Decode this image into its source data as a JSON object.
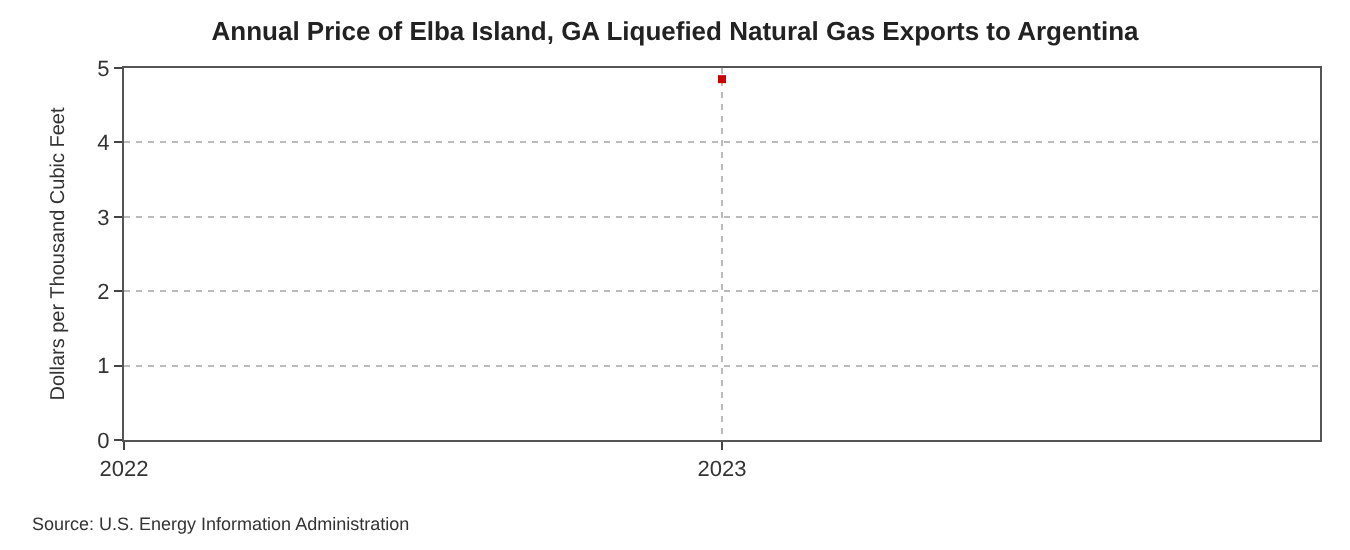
{
  "chart_data": {
    "type": "scatter",
    "title": "Annual Price of Elba Island, GA Liquefied Natural Gas Exports to Argentina",
    "ylabel": "Dollars per Thousand Cubic Feet",
    "annotations": [
      "Source: U.S. Energy Information Administration"
    ],
    "x": [
      2023
    ],
    "series": [
      {
        "color": "#cc0000",
        "values": [
          4.85
        ]
      }
    ],
    "xlim": [
      2022,
      2024
    ],
    "xticks": [
      2022,
      2023
    ],
    "ylim": [
      0,
      5
    ],
    "yticks": [
      0,
      1,
      2,
      3,
      4,
      5
    ],
    "grid": true,
    "marker": "square"
  }
}
